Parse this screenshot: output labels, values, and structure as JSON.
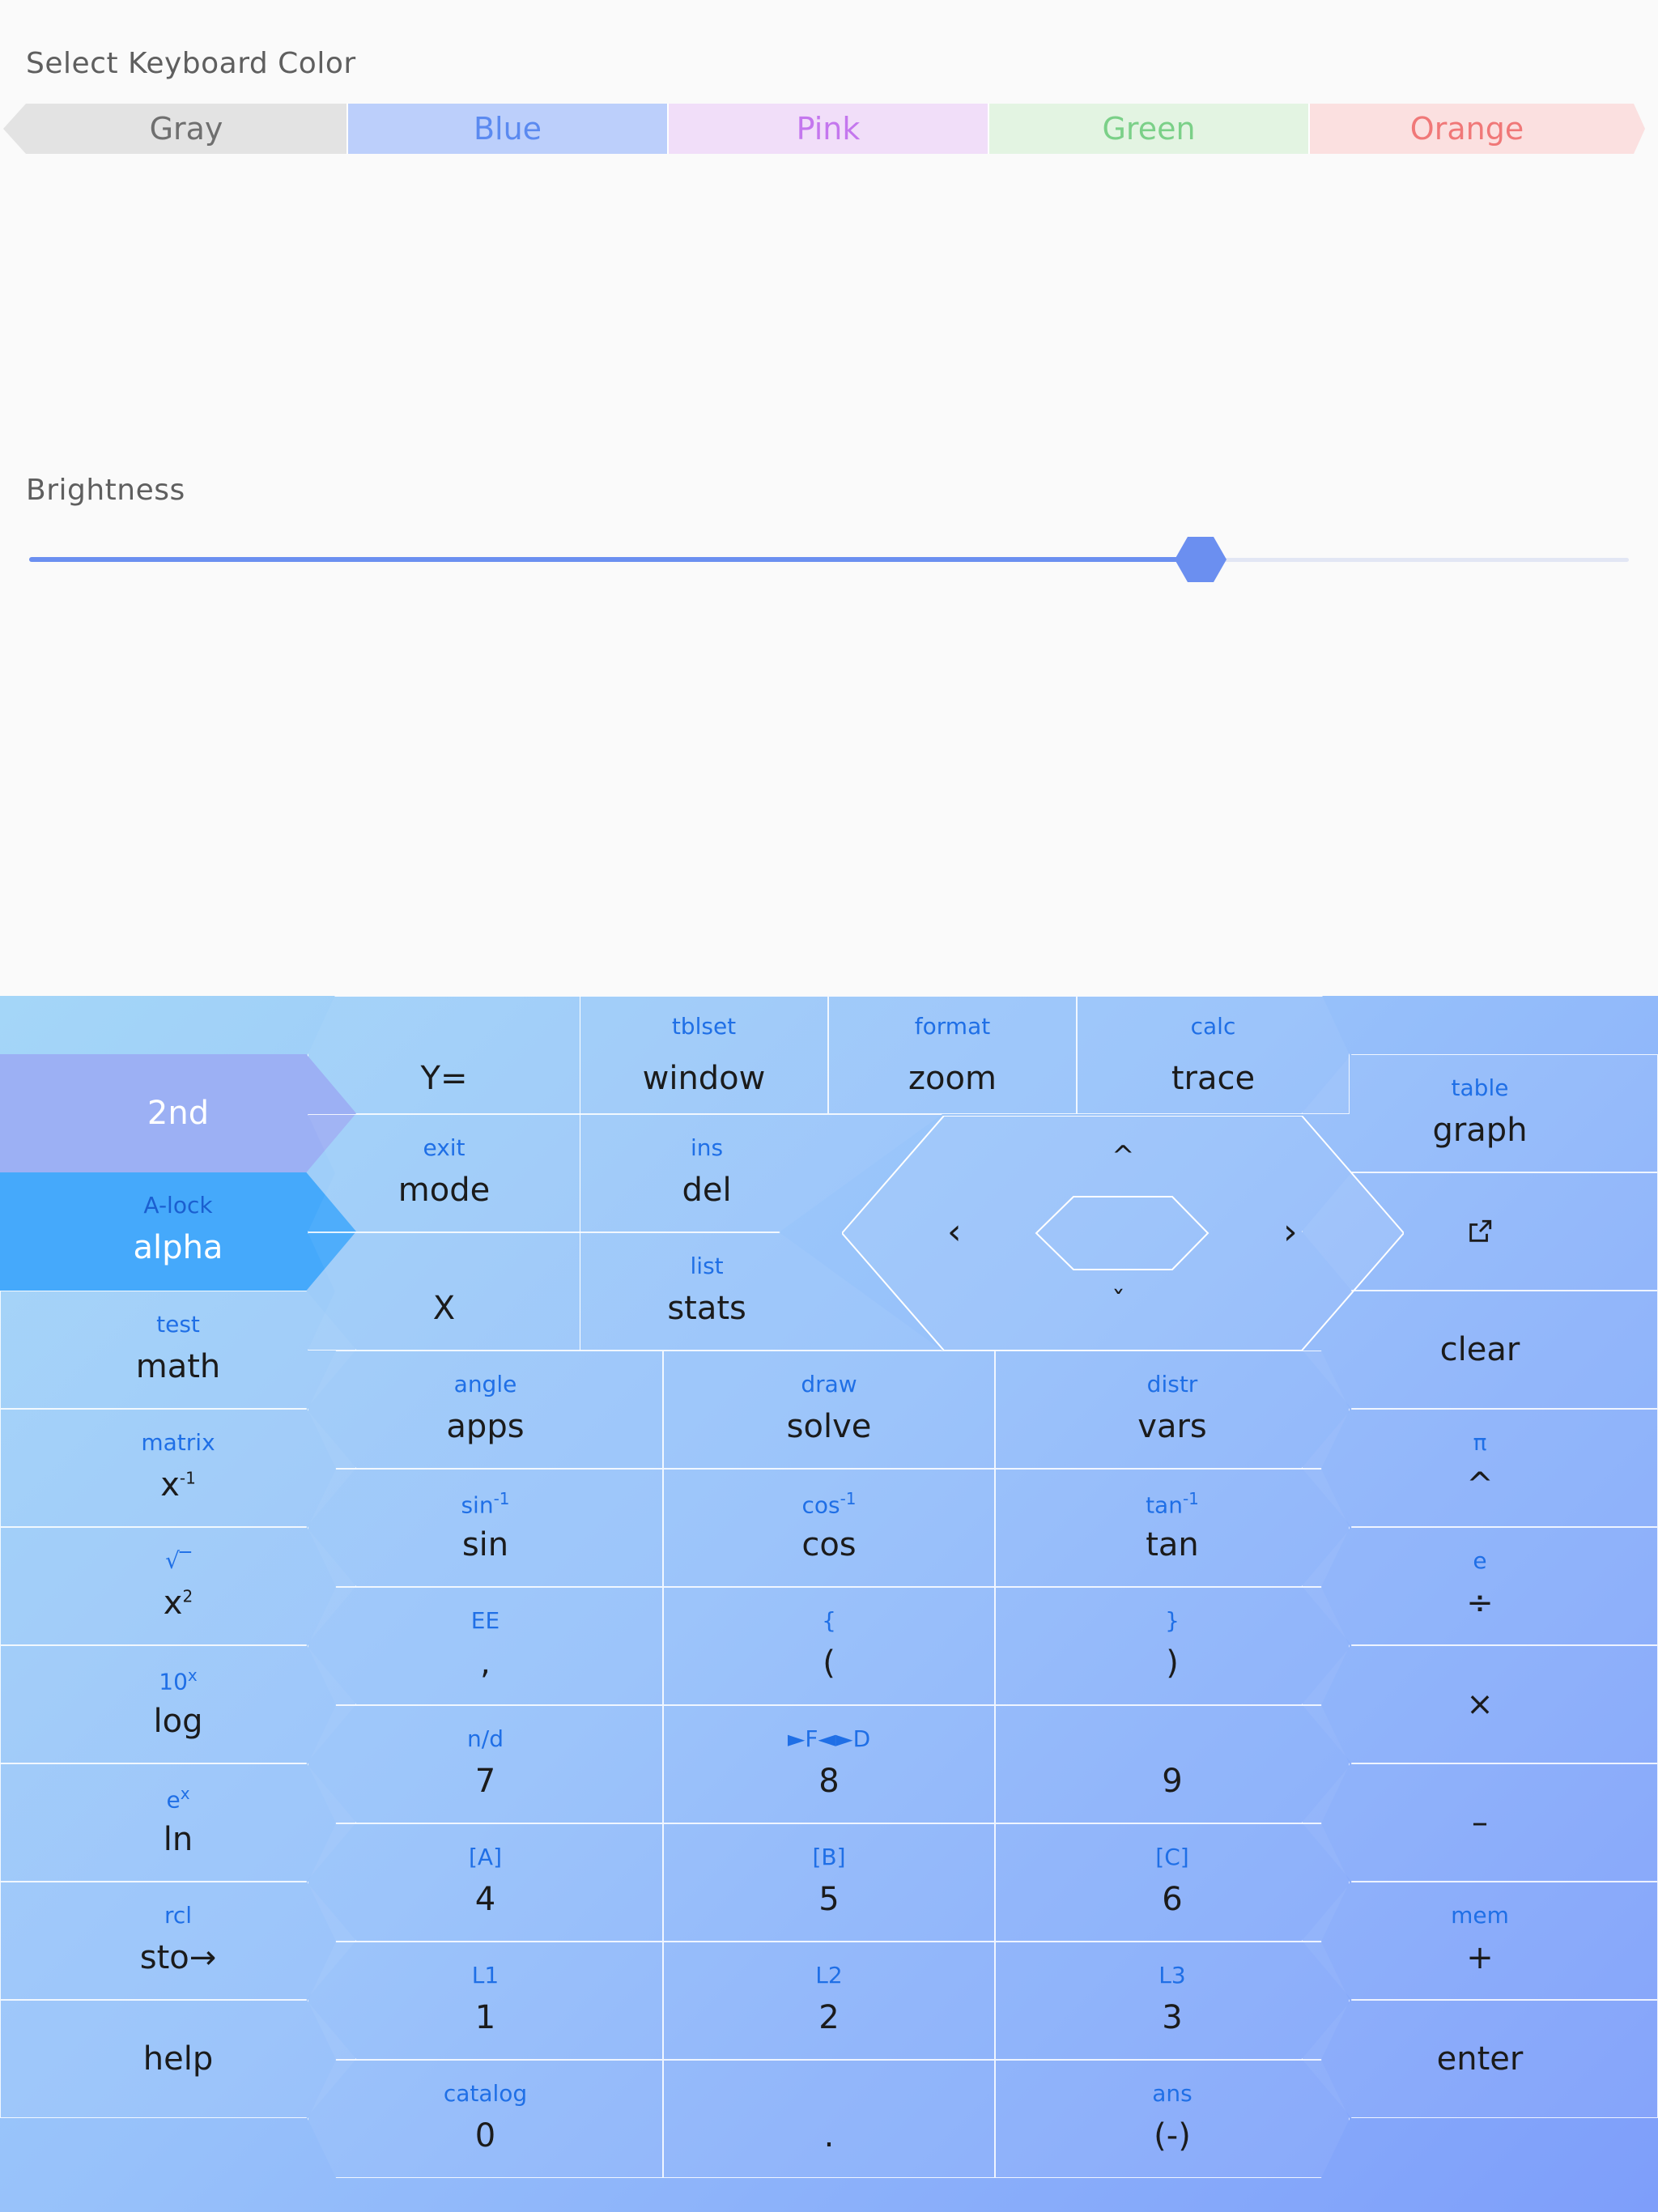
{
  "color_section": {
    "title": "Select Keyboard Color",
    "options": [
      {
        "label": "Gray",
        "text_color": "#6f6f6f",
        "bg": "#e3e3e3"
      },
      {
        "label": "Blue",
        "text_color": "#5b8af0",
        "bg": "#bccffb"
      },
      {
        "label": "Pink",
        "text_color": "#c477ee",
        "bg": "#f1def9"
      },
      {
        "label": "Green",
        "text_color": "#7bd088",
        "bg": "#e3f4e2"
      },
      {
        "label": "Orange",
        "text_color": "#f07878",
        "bg": "#fbe0e0"
      }
    ],
    "selected": "Blue"
  },
  "brightness": {
    "title": "Brightness",
    "value_fraction": 0.72,
    "accent": "#6b8ff0"
  },
  "keypad": {
    "top_row": [
      {
        "sec": "",
        "main": "Y="
      },
      {
        "sec": "tblset",
        "main": "window"
      },
      {
        "sec": "format",
        "main": "zoom"
      },
      {
        "sec": "calc",
        "main": "trace"
      }
    ],
    "left_col": [
      {
        "sec": "",
        "main": "2nd"
      },
      {
        "sec": "A-lock",
        "main": "alpha"
      },
      {
        "sec": "test",
        "main": "math"
      },
      {
        "sec": "matrix",
        "main": "x",
        "sup": "-1"
      },
      {
        "sec": "√‾",
        "main": "x",
        "sup": "2"
      },
      {
        "sec": "10",
        "sec_sup": "x",
        "main": "log"
      },
      {
        "sec": "e",
        "sec_sup": "x",
        "main": "ln"
      },
      {
        "sec": "rcl",
        "main": "sto→"
      },
      {
        "sec": "",
        "main": "help"
      }
    ],
    "right_col": [
      {
        "sec": "table",
        "main": "graph"
      },
      {
        "sec": "",
        "main": "",
        "icon": "external-link-icon"
      },
      {
        "sec": "",
        "main": "clear"
      },
      {
        "sec": "π",
        "main": "^"
      },
      {
        "sec": "e",
        "main": "÷"
      },
      {
        "sec": "",
        "main": "×"
      },
      {
        "sec": "",
        "main": "–"
      },
      {
        "sec": "mem",
        "main": "+"
      },
      {
        "sec": "",
        "main": "enter"
      }
    ],
    "upper_block": [
      {
        "sec": "exit",
        "main": "mode"
      },
      {
        "sec": "ins",
        "main": "del"
      },
      {
        "sec": "",
        "main": "X"
      },
      {
        "sec": "list",
        "main": "stats"
      }
    ],
    "grid": [
      [
        {
          "sec": "angle",
          "main": "apps"
        },
        {
          "sec": "draw",
          "main": "solve"
        },
        {
          "sec": "distr",
          "main": "vars"
        }
      ],
      [
        {
          "sec": "sin",
          "sec_sup": "-1",
          "main": "sin"
        },
        {
          "sec": "cos",
          "sec_sup": "-1",
          "main": "cos"
        },
        {
          "sec": "tan",
          "sec_sup": "-1",
          "main": "tan"
        }
      ],
      [
        {
          "sec": "EE",
          "main": ","
        },
        {
          "sec": "{",
          "main": "("
        },
        {
          "sec": "}",
          "main": ")"
        }
      ],
      [
        {
          "sec": "n/d",
          "main": "7"
        },
        {
          "sec": "►F◄►D",
          "main": "8"
        },
        {
          "sec": "",
          "main": "9"
        }
      ],
      [
        {
          "sec": "[A]",
          "main": "4"
        },
        {
          "sec": "[B]",
          "main": "5"
        },
        {
          "sec": "[C]",
          "main": "6"
        }
      ],
      [
        {
          "sec": "L1",
          "main": "1"
        },
        {
          "sec": "L2",
          "main": "2"
        },
        {
          "sec": "L3",
          "main": "3"
        }
      ],
      [
        {
          "sec": "catalog",
          "main": "0"
        },
        {
          "sec": "",
          "main": "."
        },
        {
          "sec": "ans",
          "main": "(-)"
        }
      ]
    ],
    "dpad": {
      "up": "^",
      "down": "ˇ",
      "left": "‹",
      "right": "›"
    }
  }
}
